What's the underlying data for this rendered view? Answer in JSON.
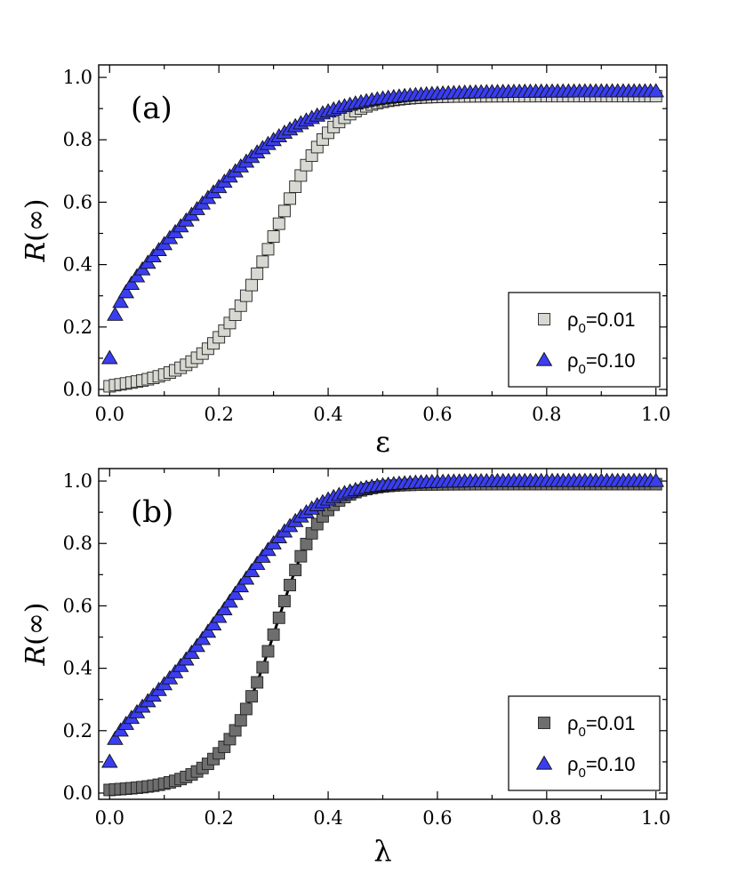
{
  "chart_data": [
    {
      "type": "scatter",
      "panel_label": "(a)",
      "xlabel": "ε",
      "ylabel_var": "R",
      "ylabel_arg": "(∞)",
      "xlim": [
        -0.02,
        1.02
      ],
      "ylim": [
        -0.02,
        1.04
      ],
      "xticks": [
        0.0,
        0.2,
        0.4,
        0.6,
        0.8,
        1.0
      ],
      "xtick_labels": [
        "0.0",
        "0.2",
        "0.4",
        "0.6",
        "0.8",
        "1.0"
      ],
      "yticks": [
        0.0,
        0.2,
        0.4,
        0.6,
        0.8,
        1.0
      ],
      "ytick_labels": [
        "0.0",
        "0.2",
        "0.4",
        "0.6",
        "0.8",
        "1.0"
      ],
      "legend_position": "bottom-right",
      "series": [
        {
          "name": "ρ0=0.01",
          "legend_base": "ρ",
          "legend_sub": "0",
          "legend_suffix": "=0.01",
          "marker": "square",
          "color": "#d8d8d2",
          "r0": 0.01,
          "mid": 0.323,
          "width": 0.05,
          "start": 0.305,
          "end": 0.94,
          "x_range": [
            0.0,
            1.0
          ],
          "points": 101,
          "fit_line": true
        },
        {
          "name": "ρ0=0.10",
          "legend_base": "ρ",
          "legend_sub": "0",
          "legend_suffix": "=0.10",
          "marker": "triangle",
          "color": "#3a3ef0",
          "r0": 0.1,
          "mid": 0.27,
          "width": 0.09,
          "start": 0.65,
          "end": 0.955,
          "x_range": [
            0.0,
            1.0
          ],
          "points": 101,
          "fit_line": false
        }
      ]
    },
    {
      "type": "scatter",
      "panel_label": "(b)",
      "xlabel": "λ",
      "ylabel_var": "R",
      "ylabel_arg": "(∞)",
      "xlim": [
        -0.02,
        1.02
      ],
      "ylim": [
        -0.02,
        1.04
      ],
      "xticks": [
        0.0,
        0.2,
        0.4,
        0.6,
        0.8,
        1.0
      ],
      "xtick_labels": [
        "0.0",
        "0.2",
        "0.4",
        "0.6",
        "0.8",
        "1.0"
      ],
      "yticks": [
        0.0,
        0.2,
        0.4,
        0.6,
        0.8,
        1.0
      ],
      "ytick_labels": [
        "0.0",
        "0.2",
        "0.4",
        "0.6",
        "0.8",
        "1.0"
      ],
      "legend_position": "bottom-right",
      "series": [
        {
          "name": "ρ0=0.01",
          "legend_base": "ρ",
          "legend_sub": "0",
          "legend_suffix": "=0.01",
          "marker": "square",
          "color": "#6e6e6e",
          "r0": 0.01,
          "mid": 0.32,
          "width": 0.04,
          "start": 0.305,
          "end": 0.99,
          "x_range": [
            0.0,
            1.0
          ],
          "points": 101,
          "fit_line": true
        },
        {
          "name": "ρ0=0.10",
          "legend_base": "ρ",
          "legend_sub": "0",
          "legend_suffix": "=0.10",
          "marker": "triangle",
          "color": "#3a3ef0",
          "r0": 0.1,
          "mid": 0.29,
          "width": 0.065,
          "start": 0.6,
          "end": 1.0,
          "x_range": [
            0.0,
            1.0
          ],
          "points": 101,
          "fit_line": false
        }
      ]
    }
  ]
}
